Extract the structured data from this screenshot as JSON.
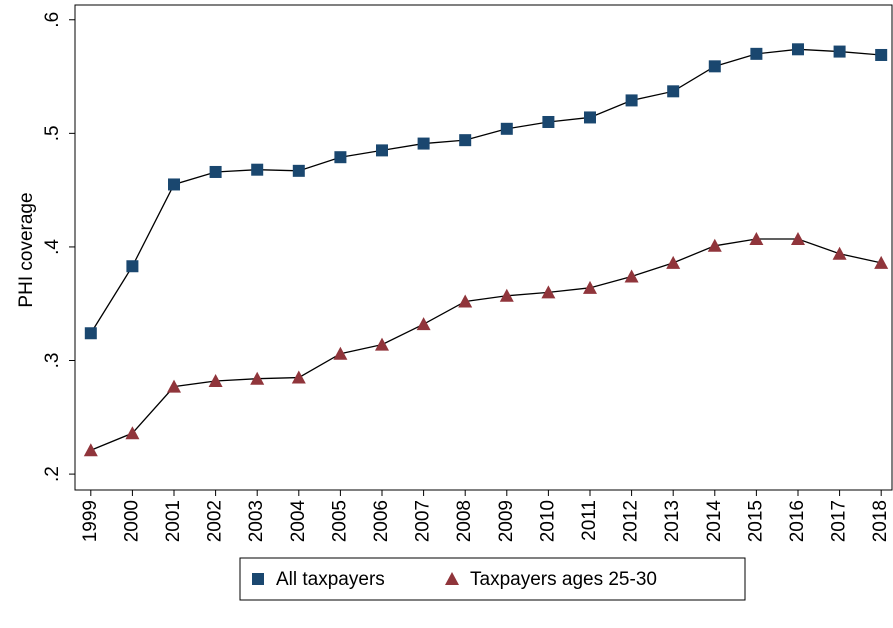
{
  "chart_data": {
    "type": "line",
    "y_label": "PHI coverage",
    "x": [
      1999,
      2000,
      2001,
      2002,
      2003,
      2004,
      2005,
      2006,
      2007,
      2008,
      2009,
      2010,
      2011,
      2012,
      2013,
      2014,
      2015,
      2016,
      2017,
      2018
    ],
    "xlim": [
      1998.62,
      2018.26
    ],
    "xticks": [
      1999,
      2000,
      2001,
      2002,
      2003,
      2004,
      2005,
      2006,
      2007,
      2008,
      2009,
      2010,
      2011,
      2012,
      2013,
      2014,
      2015,
      2016,
      2017,
      2018
    ],
    "ylim": [
      0.186,
      0.613
    ],
    "yticks": [
      {
        "value": 0.2,
        "label": ".2"
      },
      {
        "value": 0.3,
        "label": ".3"
      },
      {
        "value": 0.4,
        "label": ".4"
      },
      {
        "value": 0.5,
        "label": ".5"
      },
      {
        "value": 0.6,
        "label": ".6"
      }
    ],
    "grid": false,
    "legend": "bottom",
    "series": [
      {
        "name": "All taxpayers",
        "color": "#1a476f",
        "marker": "square",
        "values": [
          0.324,
          0.383,
          0.455,
          0.466,
          0.468,
          0.467,
          0.479,
          0.485,
          0.491,
          0.494,
          0.504,
          0.51,
          0.514,
          0.529,
          0.537,
          0.559,
          0.57,
          0.574,
          0.572,
          0.569
        ]
      },
      {
        "name": "Taxpayers ages 25-30",
        "color": "#90353b",
        "marker": "triangle",
        "values": [
          0.221,
          0.236,
          0.277,
          0.282,
          0.284,
          0.285,
          0.306,
          0.314,
          0.332,
          0.352,
          0.357,
          0.36,
          0.364,
          0.374,
          0.386,
          0.401,
          0.407,
          0.407,
          0.394,
          0.386
        ]
      }
    ]
  }
}
